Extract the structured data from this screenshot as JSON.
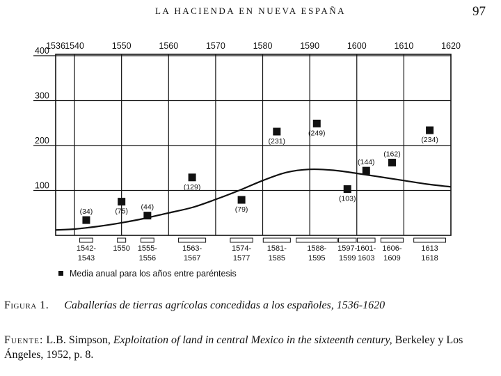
{
  "running_head": "LA HACIENDA EN NUEVA ESPAÑA",
  "page_number": "97",
  "caption": {
    "label": "Figura 1.",
    "text": "Caballerías de tierras agrícolas concedidas a los españoles, 1536-1620"
  },
  "source": {
    "label": "Fuente:",
    "author": "L.B. Simpson,",
    "title_italic": "Exploitation of land in central Mexico in the sixteenth century,",
    "publisher": "Berkeley y Los Ángeles, 1952, p. 8."
  },
  "chart_data": {
    "type": "scatter",
    "title": "",
    "xlabel": "",
    "ylabel": "",
    "xlim": [
      1536,
      1620
    ],
    "ylim": [
      0,
      400
    ],
    "x_ticks": [
      {
        "value": 1536,
        "label": "1536"
      },
      {
        "value": 1540,
        "label": "1540"
      },
      {
        "value": 1550,
        "label": "1550"
      },
      {
        "value": 1560,
        "label": "1560"
      },
      {
        "value": 1570,
        "label": "1570"
      },
      {
        "value": 1580,
        "label": "1580"
      },
      {
        "value": 1590,
        "label": "1590"
      },
      {
        "value": 1600,
        "label": "1600"
      },
      {
        "value": 1610,
        "label": "1610"
      },
      {
        "value": 1620,
        "label": "1620"
      }
    ],
    "y_ticks": [
      {
        "value": 100,
        "label": "100"
      },
      {
        "value": 200,
        "label": "200"
      },
      {
        "value": 300,
        "label": "300"
      },
      {
        "value": 400,
        "label": "400"
      }
    ],
    "grid": true,
    "points": [
      {
        "period": [
          "1542-",
          "1543"
        ],
        "start": 1542,
        "end": 1543,
        "value": 34,
        "label": "(34)"
      },
      {
        "period": [
          "1550"
        ],
        "start": 1550,
        "end": 1550,
        "value": 75,
        "label": "(75)"
      },
      {
        "period": [
          "1555-",
          "1556"
        ],
        "start": 1555,
        "end": 1556,
        "value": 44,
        "label": "(44)"
      },
      {
        "period": [
          "1563-",
          "1567"
        ],
        "start": 1563,
        "end": 1567,
        "value": 129,
        "label": "(129)"
      },
      {
        "period": [
          "1574-",
          "1577"
        ],
        "start": 1574,
        "end": 1577,
        "value": 79,
        "label": "(79)"
      },
      {
        "period": [
          "1581-",
          "1585"
        ],
        "start": 1581,
        "end": 1585,
        "value": 231,
        "label": "(231)"
      },
      {
        "period": [
          "1588-",
          "1595"
        ],
        "start": 1588,
        "end": 1595,
        "value": 249,
        "label": "(249)"
      },
      {
        "period": [
          "1597-",
          "1599"
        ],
        "start": 1597,
        "end": 1599,
        "value": 103,
        "label": "(103)"
      },
      {
        "period": [
          "1601-",
          "1603"
        ],
        "start": 1601,
        "end": 1603,
        "value": 144,
        "label": "(144)"
      },
      {
        "period": [
          "1606-",
          "1609"
        ],
        "start": 1606,
        "end": 1609,
        "value": 162,
        "label": "(162)"
      },
      {
        "period": [
          "1613",
          "1618"
        ],
        "start": 1613,
        "end": 1618,
        "value": 234,
        "label": "(234)"
      }
    ],
    "trend_curve": {
      "x": [
        1536,
        1540,
        1545,
        1550,
        1555,
        1560,
        1565,
        1570,
        1575,
        1580,
        1585,
        1590,
        1595,
        1600,
        1605,
        1610,
        1615,
        1620
      ],
      "y": [
        12,
        14,
        20,
        28,
        38,
        50,
        62,
        80,
        100,
        122,
        140,
        147,
        145,
        138,
        130,
        122,
        114,
        108
      ]
    },
    "legend": {
      "text": "Media anual para los años entre paréntesis",
      "position": "bottom-left"
    }
  }
}
